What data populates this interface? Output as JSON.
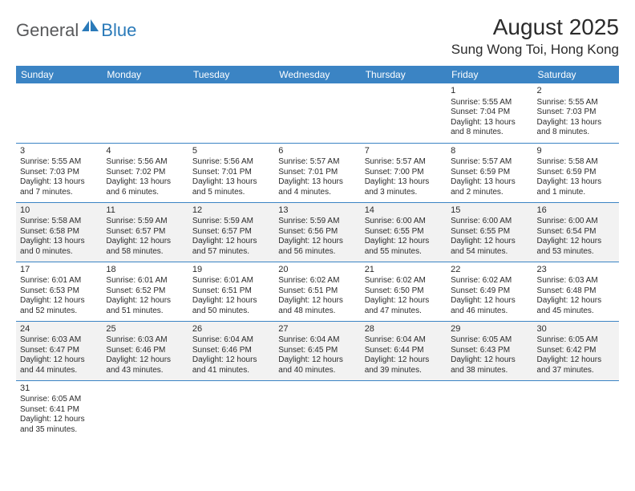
{
  "logo": {
    "general": "General",
    "blue": "Blue"
  },
  "title": "August 2025",
  "location": "Sung Wong Toi, Hong Kong",
  "colors": {
    "header_bg": "#3b84c4",
    "header_text": "#ffffff",
    "row_alt_bg": "#f2f2f2",
    "text": "#2b2b2b",
    "logo_gray": "#58595b",
    "logo_blue": "#2a7ab9",
    "border": "#3b84c4"
  },
  "weekdays": [
    "Sunday",
    "Monday",
    "Tuesday",
    "Wednesday",
    "Thursday",
    "Friday",
    "Saturday"
  ],
  "weeks": [
    [
      null,
      null,
      null,
      null,
      null,
      {
        "d": "1",
        "sr": "Sunrise: 5:55 AM",
        "ss": "Sunset: 7:04 PM",
        "dl1": "Daylight: 13 hours",
        "dl2": "and 8 minutes."
      },
      {
        "d": "2",
        "sr": "Sunrise: 5:55 AM",
        "ss": "Sunset: 7:03 PM",
        "dl1": "Daylight: 13 hours",
        "dl2": "and 8 minutes."
      }
    ],
    [
      {
        "d": "3",
        "sr": "Sunrise: 5:55 AM",
        "ss": "Sunset: 7:03 PM",
        "dl1": "Daylight: 13 hours",
        "dl2": "and 7 minutes."
      },
      {
        "d": "4",
        "sr": "Sunrise: 5:56 AM",
        "ss": "Sunset: 7:02 PM",
        "dl1": "Daylight: 13 hours",
        "dl2": "and 6 minutes."
      },
      {
        "d": "5",
        "sr": "Sunrise: 5:56 AM",
        "ss": "Sunset: 7:01 PM",
        "dl1": "Daylight: 13 hours",
        "dl2": "and 5 minutes."
      },
      {
        "d": "6",
        "sr": "Sunrise: 5:57 AM",
        "ss": "Sunset: 7:01 PM",
        "dl1": "Daylight: 13 hours",
        "dl2": "and 4 minutes."
      },
      {
        "d": "7",
        "sr": "Sunrise: 5:57 AM",
        "ss": "Sunset: 7:00 PM",
        "dl1": "Daylight: 13 hours",
        "dl2": "and 3 minutes."
      },
      {
        "d": "8",
        "sr": "Sunrise: 5:57 AM",
        "ss": "Sunset: 6:59 PM",
        "dl1": "Daylight: 13 hours",
        "dl2": "and 2 minutes."
      },
      {
        "d": "9",
        "sr": "Sunrise: 5:58 AM",
        "ss": "Sunset: 6:59 PM",
        "dl1": "Daylight: 13 hours",
        "dl2": "and 1 minute."
      }
    ],
    [
      {
        "d": "10",
        "sr": "Sunrise: 5:58 AM",
        "ss": "Sunset: 6:58 PM",
        "dl1": "Daylight: 13 hours",
        "dl2": "and 0 minutes."
      },
      {
        "d": "11",
        "sr": "Sunrise: 5:59 AM",
        "ss": "Sunset: 6:57 PM",
        "dl1": "Daylight: 12 hours",
        "dl2": "and 58 minutes."
      },
      {
        "d": "12",
        "sr": "Sunrise: 5:59 AM",
        "ss": "Sunset: 6:57 PM",
        "dl1": "Daylight: 12 hours",
        "dl2": "and 57 minutes."
      },
      {
        "d": "13",
        "sr": "Sunrise: 5:59 AM",
        "ss": "Sunset: 6:56 PM",
        "dl1": "Daylight: 12 hours",
        "dl2": "and 56 minutes."
      },
      {
        "d": "14",
        "sr": "Sunrise: 6:00 AM",
        "ss": "Sunset: 6:55 PM",
        "dl1": "Daylight: 12 hours",
        "dl2": "and 55 minutes."
      },
      {
        "d": "15",
        "sr": "Sunrise: 6:00 AM",
        "ss": "Sunset: 6:55 PM",
        "dl1": "Daylight: 12 hours",
        "dl2": "and 54 minutes."
      },
      {
        "d": "16",
        "sr": "Sunrise: 6:00 AM",
        "ss": "Sunset: 6:54 PM",
        "dl1": "Daylight: 12 hours",
        "dl2": "and 53 minutes."
      }
    ],
    [
      {
        "d": "17",
        "sr": "Sunrise: 6:01 AM",
        "ss": "Sunset: 6:53 PM",
        "dl1": "Daylight: 12 hours",
        "dl2": "and 52 minutes."
      },
      {
        "d": "18",
        "sr": "Sunrise: 6:01 AM",
        "ss": "Sunset: 6:52 PM",
        "dl1": "Daylight: 12 hours",
        "dl2": "and 51 minutes."
      },
      {
        "d": "19",
        "sr": "Sunrise: 6:01 AM",
        "ss": "Sunset: 6:51 PM",
        "dl1": "Daylight: 12 hours",
        "dl2": "and 50 minutes."
      },
      {
        "d": "20",
        "sr": "Sunrise: 6:02 AM",
        "ss": "Sunset: 6:51 PM",
        "dl1": "Daylight: 12 hours",
        "dl2": "and 48 minutes."
      },
      {
        "d": "21",
        "sr": "Sunrise: 6:02 AM",
        "ss": "Sunset: 6:50 PM",
        "dl1": "Daylight: 12 hours",
        "dl2": "and 47 minutes."
      },
      {
        "d": "22",
        "sr": "Sunrise: 6:02 AM",
        "ss": "Sunset: 6:49 PM",
        "dl1": "Daylight: 12 hours",
        "dl2": "and 46 minutes."
      },
      {
        "d": "23",
        "sr": "Sunrise: 6:03 AM",
        "ss": "Sunset: 6:48 PM",
        "dl1": "Daylight: 12 hours",
        "dl2": "and 45 minutes."
      }
    ],
    [
      {
        "d": "24",
        "sr": "Sunrise: 6:03 AM",
        "ss": "Sunset: 6:47 PM",
        "dl1": "Daylight: 12 hours",
        "dl2": "and 44 minutes."
      },
      {
        "d": "25",
        "sr": "Sunrise: 6:03 AM",
        "ss": "Sunset: 6:46 PM",
        "dl1": "Daylight: 12 hours",
        "dl2": "and 43 minutes."
      },
      {
        "d": "26",
        "sr": "Sunrise: 6:04 AM",
        "ss": "Sunset: 6:46 PM",
        "dl1": "Daylight: 12 hours",
        "dl2": "and 41 minutes."
      },
      {
        "d": "27",
        "sr": "Sunrise: 6:04 AM",
        "ss": "Sunset: 6:45 PM",
        "dl1": "Daylight: 12 hours",
        "dl2": "and 40 minutes."
      },
      {
        "d": "28",
        "sr": "Sunrise: 6:04 AM",
        "ss": "Sunset: 6:44 PM",
        "dl1": "Daylight: 12 hours",
        "dl2": "and 39 minutes."
      },
      {
        "d": "29",
        "sr": "Sunrise: 6:05 AM",
        "ss": "Sunset: 6:43 PM",
        "dl1": "Daylight: 12 hours",
        "dl2": "and 38 minutes."
      },
      {
        "d": "30",
        "sr": "Sunrise: 6:05 AM",
        "ss": "Sunset: 6:42 PM",
        "dl1": "Daylight: 12 hours",
        "dl2": "and 37 minutes."
      }
    ],
    [
      {
        "d": "31",
        "sr": "Sunrise: 6:05 AM",
        "ss": "Sunset: 6:41 PM",
        "dl1": "Daylight: 12 hours",
        "dl2": "and 35 minutes."
      },
      null,
      null,
      null,
      null,
      null,
      null
    ]
  ]
}
